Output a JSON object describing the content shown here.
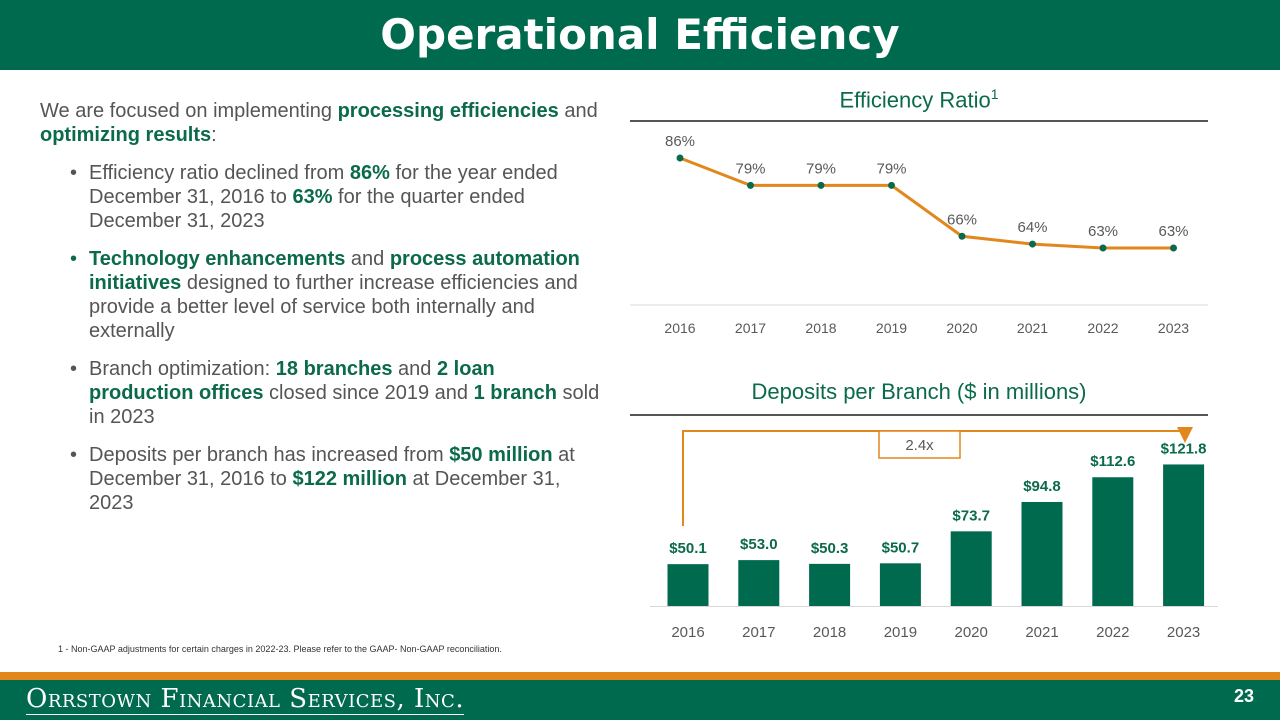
{
  "header": {
    "title": "Operational Efficiency"
  },
  "intro": {
    "t1": "We are focused on implementing ",
    "b1": "processing efficiencies",
    "t2": " and ",
    "b2": "optimizing results",
    "t3": ":"
  },
  "bullets": [
    {
      "t1": "Efficiency ratio declined from ",
      "b1": "86%",
      "t2": " for the year ended December 31, 2016 to ",
      "b2": "63%",
      "t3": " for the quarter ended December 31, 2023",
      "b3": "",
      "t4": ""
    },
    {
      "t1": "",
      "b1": "Technology enhancements",
      "t2": " and ",
      "b2": "process automation initiatives",
      "t3": " designed to further increase efficiencies and provide a better level of service both internally and externally",
      "b3": "",
      "t4": ""
    },
    {
      "t1": "Branch optimization: ",
      "b1": "18 branches",
      "t2": " and ",
      "b2": "2 loan production offices",
      "t3": " closed since 2019 and ",
      "b3": "1 branch",
      "t4": " sold in 2023"
    },
    {
      "t1": "Deposits per branch has increased from ",
      "b1": "$50 million",
      "t2": " at December 31, 2016 to ",
      "b2": "$122 million",
      "t3": " at December 31, 2023",
      "b3": "",
      "t4": ""
    }
  ],
  "chart_data": [
    {
      "type": "line",
      "title": "Efficiency Ratio",
      "title_sup": "1",
      "categories": [
        "2016",
        "2017",
        "2018",
        "2019",
        "2020",
        "2021",
        "2022",
        "2023"
      ],
      "values": [
        86,
        79,
        79,
        79,
        66,
        64,
        63,
        63
      ],
      "labels": [
        "86%",
        "79%",
        "79%",
        "79%",
        "66%",
        "64%",
        "63%",
        "63%"
      ],
      "ylim": [
        50,
        90
      ],
      "line_color": "#e2871c",
      "marker_color": "#0b6a4b",
      "grid": false
    },
    {
      "type": "bar",
      "title": "Deposits per Branch ($ in millions)",
      "categories": [
        "2016",
        "2017",
        "2018",
        "2019",
        "2020",
        "2021",
        "2022",
        "2023"
      ],
      "values": [
        50.1,
        53.0,
        50.3,
        50.7,
        73.7,
        94.8,
        112.6,
        121.8
      ],
      "labels": [
        "$50.1",
        "$53.0",
        "$50.3",
        "$50.7",
        "$73.7",
        "$94.8",
        "$112.6",
        "$121.8"
      ],
      "ylim": [
        20,
        125
      ],
      "bar_color": "#006a4e",
      "annotation": "2.4x",
      "annotation_color": "#e2871c",
      "grid": false
    }
  ],
  "footnote": "1 - Non-GAAP adjustments for certain charges in 2022-23. Please refer to the GAAP- Non-GAAP reconciliation.",
  "footer": {
    "logo": "Orrstown Financial Services, Inc.",
    "page": "23"
  }
}
